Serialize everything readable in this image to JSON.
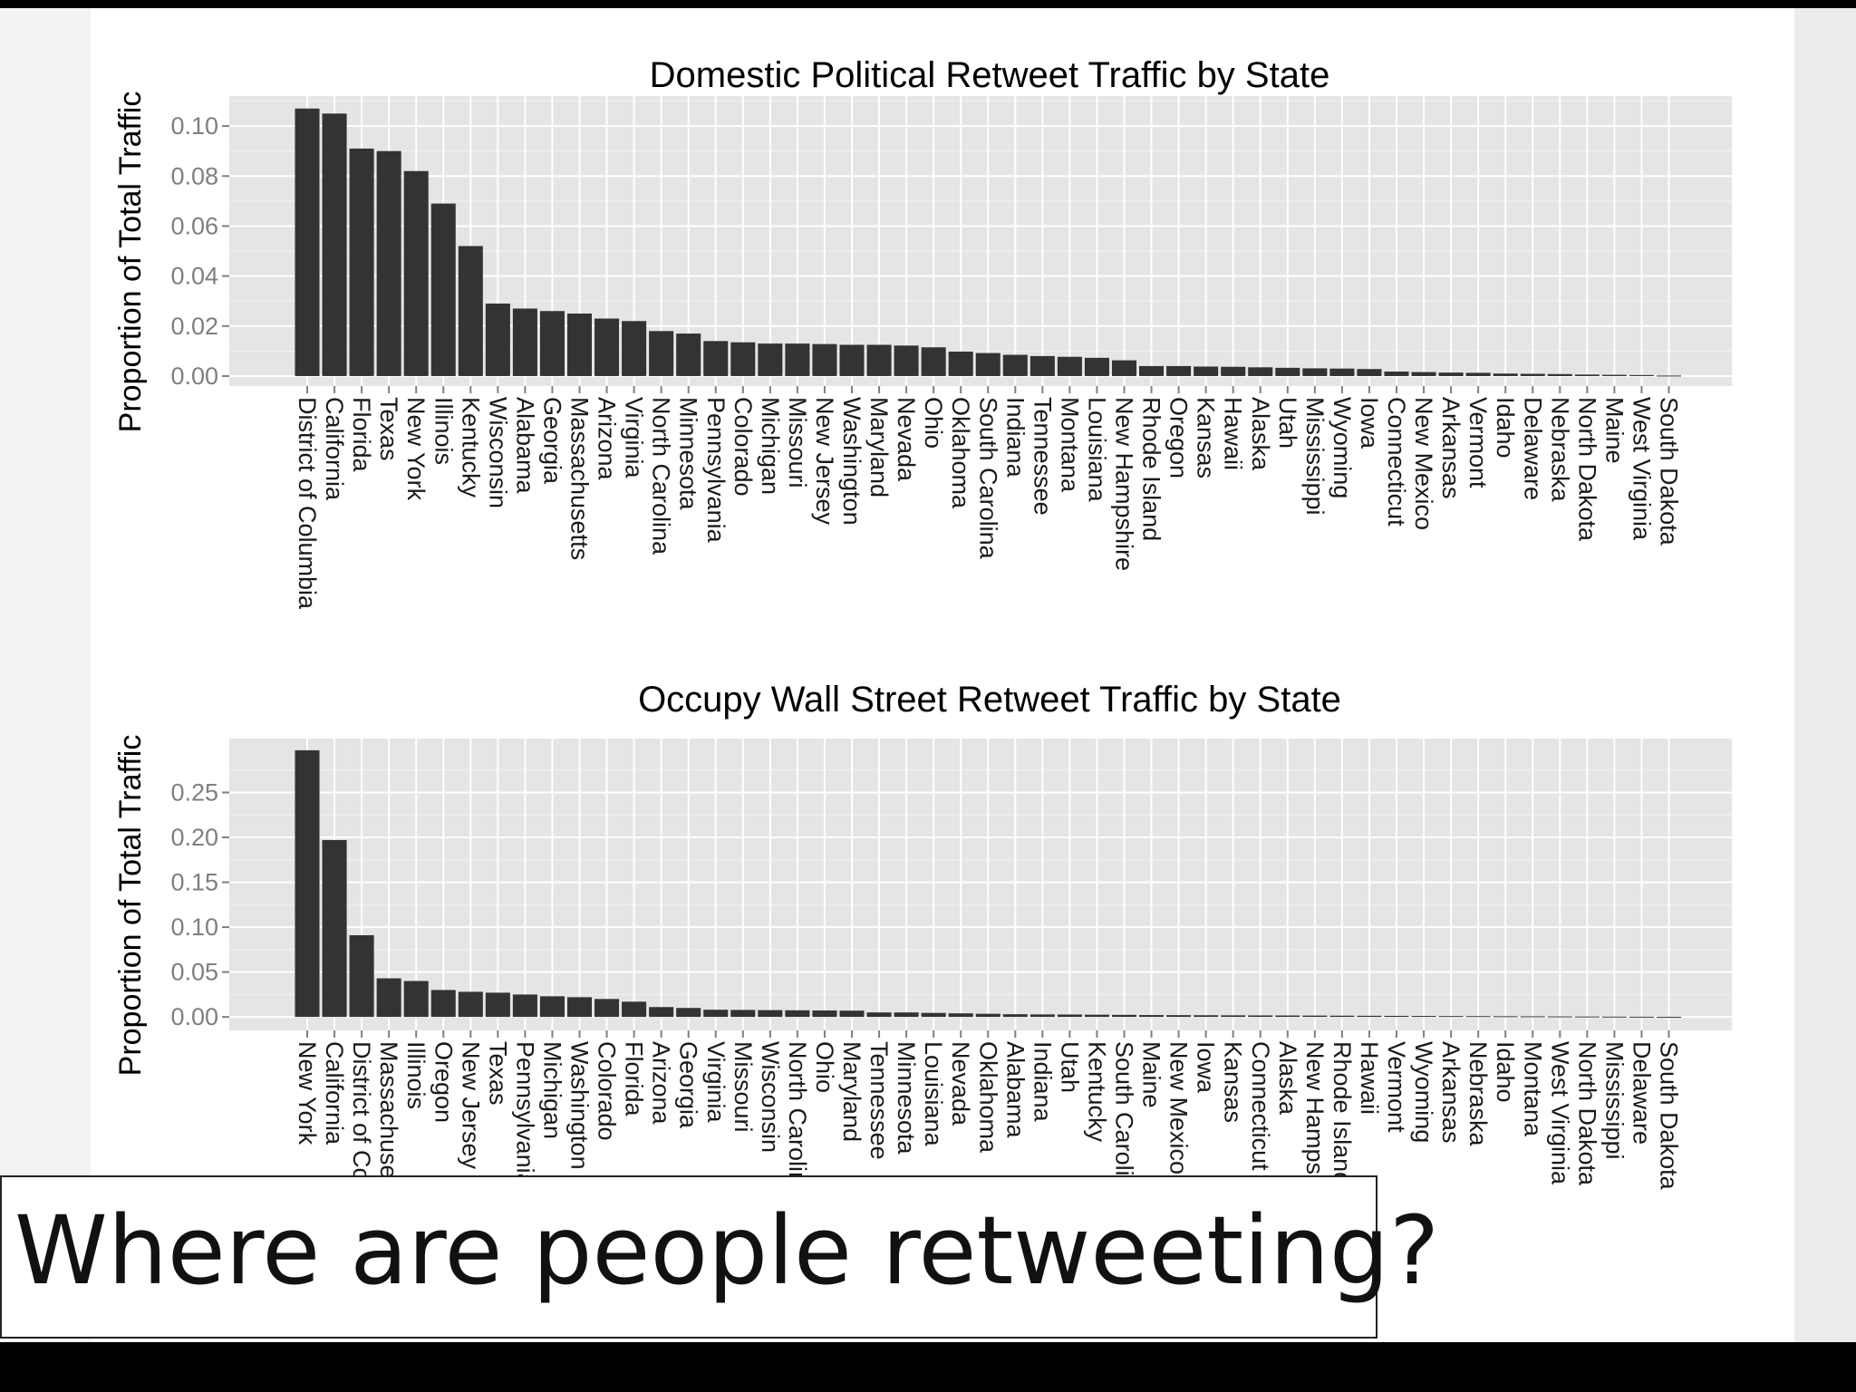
{
  "caption": "Where are people retweeting?",
  "colors": {
    "bar": "#333333",
    "plot_background": "#e5e5e5",
    "grid": "#ffffff"
  },
  "chart_data": [
    {
      "type": "bar",
      "title": "Domestic Political Retweet Traffic by State",
      "xlabel": "",
      "ylabel": "Proportion of Total Traffic",
      "ylim": [
        -0.004,
        0.112
      ],
      "yticks": [
        0.0,
        0.02,
        0.04,
        0.06,
        0.08,
        0.1
      ],
      "ytick_labels": [
        "0.00",
        "0.02",
        "0.04",
        "0.06",
        "0.08",
        "0.10"
      ],
      "grid": true,
      "categories": [
        "District of Columbia",
        "California",
        "Florida",
        "Texas",
        "New York",
        "Illinois",
        "Kentucky",
        "Wisconsin",
        "Alabama",
        "Georgia",
        "Massachusetts",
        "Arizona",
        "Virginia",
        "North Carolina",
        "Minnesota",
        "Pennsylvania",
        "Colorado",
        "Michigan",
        "Missouri",
        "New Jersey",
        "Washington",
        "Maryland",
        "Nevada",
        "Ohio",
        "Oklahoma",
        "South Carolina",
        "Indiana",
        "Tennessee",
        "Montana",
        "Louisiana",
        "New Hampshire",
        "Rhode Island",
        "Oregon",
        "Kansas",
        "Hawaii",
        "Alaska",
        "Utah",
        "Mississippi",
        "Wyoming",
        "Iowa",
        "Connecticut",
        "New Mexico",
        "Arkansas",
        "Vermont",
        "Idaho",
        "Delaware",
        "Nebraska",
        "North Dakota",
        "Maine",
        "West Virginia",
        "South Dakota"
      ],
      "values": [
        0.107,
        0.105,
        0.091,
        0.09,
        0.082,
        0.069,
        0.052,
        0.029,
        0.027,
        0.026,
        0.025,
        0.023,
        0.022,
        0.018,
        0.017,
        0.014,
        0.0135,
        0.013,
        0.013,
        0.0128,
        0.0125,
        0.0125,
        0.0122,
        0.0115,
        0.0098,
        0.0092,
        0.0085,
        0.008,
        0.0077,
        0.0073,
        0.0063,
        0.004,
        0.004,
        0.0038,
        0.0037,
        0.0035,
        0.0033,
        0.0031,
        0.003,
        0.0028,
        0.0018,
        0.0016,
        0.0014,
        0.0013,
        0.001,
        0.0009,
        0.0008,
        0.0006,
        0.0005,
        0.0004,
        0.0002
      ]
    },
    {
      "type": "bar",
      "title": "Occupy Wall Street Retweet Traffic by State",
      "xlabel": "",
      "ylabel": "Proportion of Total Traffic",
      "ylim": [
        -0.015,
        0.31
      ],
      "yticks": [
        0.0,
        0.05,
        0.1,
        0.15,
        0.2,
        0.25
      ],
      "ytick_labels": [
        "0.00",
        "0.05",
        "0.10",
        "0.15",
        "0.20",
        "0.25"
      ],
      "grid": true,
      "categories": [
        "New York",
        "California",
        "District of Columbia",
        "Massachusetts",
        "Illinois",
        "Oregon",
        "New Jersey",
        "Texas",
        "Pennsylvania",
        "Michigan",
        "Washington",
        "Colorado",
        "Florida",
        "Arizona",
        "Georgia",
        "Virginia",
        "Missouri",
        "Wisconsin",
        "North Carolina",
        "Ohio",
        "Maryland",
        "Tennessee",
        "Minnesota",
        "Louisiana",
        "Nevada",
        "Oklahoma",
        "Alabama",
        "Indiana",
        "Utah",
        "Kentucky",
        "South Carolina",
        "Maine",
        "New Mexico",
        "Iowa",
        "Kansas",
        "Connecticut",
        "Alaska",
        "New Hampshire",
        "Rhode Island",
        "Hawaii",
        "Vermont",
        "Wyoming",
        "Arkansas",
        "Nebraska",
        "Idaho",
        "Montana",
        "West Virginia",
        "North Dakota",
        "Mississippi",
        "Delaware",
        "South Dakota"
      ],
      "values": [
        0.297,
        0.197,
        0.091,
        0.043,
        0.04,
        0.03,
        0.028,
        0.027,
        0.025,
        0.023,
        0.022,
        0.02,
        0.017,
        0.011,
        0.01,
        0.008,
        0.0078,
        0.0076,
        0.0074,
        0.0072,
        0.007,
        0.005,
        0.005,
        0.0045,
        0.004,
        0.0035,
        0.003,
        0.0028,
        0.0027,
        0.0025,
        0.0023,
        0.0021,
        0.002,
        0.0019,
        0.0018,
        0.0017,
        0.0016,
        0.0015,
        0.0014,
        0.0013,
        0.0012,
        0.0011,
        0.001,
        0.0009,
        0.0008,
        0.0007,
        0.0006,
        0.0005,
        0.0004,
        0.0003,
        0.0002
      ]
    }
  ]
}
